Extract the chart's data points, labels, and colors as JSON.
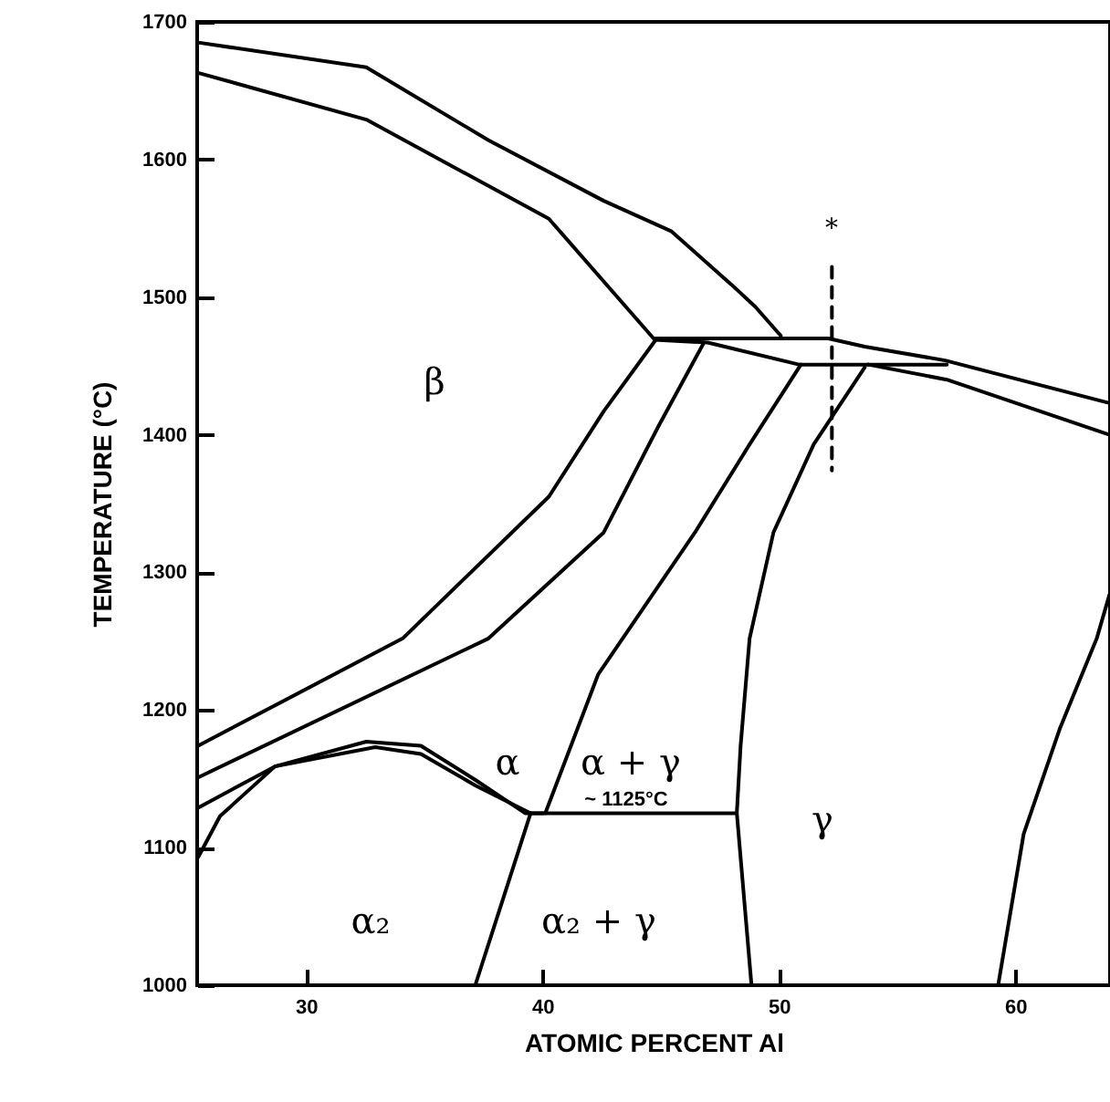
{
  "chart_data": {
    "type": "line",
    "xlabel": "ATOMIC PERCENT Al",
    "ylabel": "TEMPERATURE (°C)",
    "xlim": [
      25.4,
      64
    ],
    "xticks": [
      30,
      40,
      50,
      60
    ],
    "ylim": [
      1000,
      1700
    ],
    "yticks": [
      1000,
      1100,
      1200,
      1300,
      1400,
      1500,
      1600,
      1700
    ],
    "grid": false,
    "marker": "none",
    "series": [
      {
        "color": "#000000",
        "x": [
          25.44,
          32.55,
          37.72,
          42.59,
          45.44,
          48.0,
          49.0,
          50.08
        ],
        "values": [
          1685,
          1667,
          1614,
          1570,
          1548,
          1509,
          1493,
          1472
        ]
      },
      {
        "color": "#000000",
        "x": [
          25.44,
          32.55,
          40.27,
          44.75
        ],
        "values": [
          1663,
          1629,
          1557,
          1469
        ]
      },
      {
        "color": "#000000",
        "x": [
          44.75,
          52.09,
          53.63,
          57.03,
          63.98
        ],
        "values": [
          1470,
          1470,
          1464,
          1454,
          1423
        ]
      },
      {
        "color": "#000000",
        "x": [
          44.75,
          46.99,
          50.85,
          57.1
        ],
        "values": [
          1469,
          1467,
          1451,
          1451
        ]
      },
      {
        "color": "#000000",
        "x": [
          53.78,
          57.1,
          63.98
        ],
        "values": [
          1451,
          1440,
          1400
        ]
      },
      {
        "color": "#000000",
        "x": [
          44.75,
          42.59,
          40.27,
          34.09,
          25.44
        ],
        "values": [
          1468,
          1417,
          1355,
          1252,
          1174
        ]
      },
      {
        "color": "#000000",
        "x": [
          46.83,
          44.9,
          42.59,
          37.72,
          25.44
        ],
        "values": [
          1467,
          1406,
          1329,
          1252,
          1151
        ]
      },
      {
        "color": "#000000",
        "x": [
          50.93,
          48.76,
          46.45,
          42.36,
          40.12
        ],
        "values": [
          1451,
          1393,
          1329,
          1226,
          1125
        ]
      },
      {
        "color": "#000000",
        "x": [
          53.63,
          51.47,
          49.77,
          48.76,
          48.38,
          48.22,
          48.84
        ],
        "values": [
          1449,
          1393,
          1329,
          1252,
          1174,
          1125,
          1000
        ]
      },
      {
        "color": "#000000",
        "x": [
          39.5,
          48.22
        ],
        "values": [
          1125,
          1125
        ]
      },
      {
        "color": "#000000",
        "x": [
          39.5,
          37.16
        ],
        "values": [
          1125,
          1000
        ]
      },
      {
        "color": "#000000",
        "x": [
          25.44,
          28.69,
          32.55,
          34.86,
          37.18,
          39.27,
          40.04
        ],
        "values": [
          1129,
          1159,
          1177,
          1174,
          1149,
          1125,
          1125
        ]
      },
      {
        "color": "#000000",
        "x": [
          25.44,
          26.37,
          26.76,
          28.69,
          32.93,
          34.86,
          37.18,
          39.5
        ],
        "values": [
          1093,
          1123,
          1129,
          1159,
          1173,
          1168,
          1145,
          1125
        ]
      },
      {
        "color": "#000000",
        "x": [
          59.27,
          60.35,
          61.89,
          63.44,
          63.98
        ],
        "values": [
          1000,
          1110,
          1187,
          1252,
          1284
        ]
      },
      {
        "color": "#000000",
        "line_style": "dashed",
        "x": [
          52.24,
          52.24
        ],
        "values": [
          1522,
          1374
        ]
      }
    ],
    "annotations": [
      "*",
      "β",
      "α",
      "α + γ",
      "~ 1125°C",
      "γ",
      "α₂",
      "α₂ + γ"
    ]
  }
}
